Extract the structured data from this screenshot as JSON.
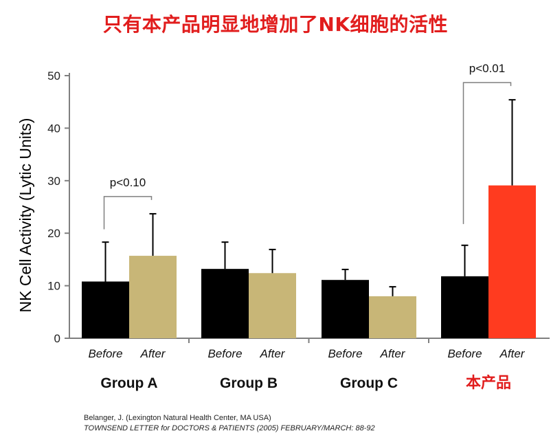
{
  "title": "只有本产品明显地增加了NK细胞的活性",
  "chart_data": {
    "type": "bar",
    "ylabel": "NK Cell Activity (Lytic Units)",
    "ylim": [
      0,
      50
    ],
    "yticks": [
      0,
      10,
      20,
      30,
      40,
      50
    ],
    "groups": [
      {
        "name": "Group A",
        "bars": [
          {
            "label": "Before",
            "value": 10.8,
            "error": 7.5,
            "color": "#000000"
          },
          {
            "label": "After",
            "value": 15.7,
            "error": 8.0,
            "color": "#c8b677"
          }
        ],
        "significance": "p<0.10"
      },
      {
        "name": "Group B",
        "bars": [
          {
            "label": "Before",
            "value": 13.2,
            "error": 5.1,
            "color": "#000000"
          },
          {
            "label": "After",
            "value": 12.4,
            "error": 4.5,
            "color": "#c8b677"
          }
        ],
        "significance": ""
      },
      {
        "name": "Group C",
        "bars": [
          {
            "label": "Before",
            "value": 11.1,
            "error": 2.0,
            "color": "#000000"
          },
          {
            "label": "After",
            "value": 8.0,
            "error": 1.8,
            "color": "#c8b677"
          }
        ],
        "significance": ""
      },
      {
        "name": "本产品",
        "bars": [
          {
            "label": "Before",
            "value": 11.8,
            "error": 5.9,
            "color": "#000000"
          },
          {
            "label": "After",
            "value": 29.1,
            "error": 16.3,
            "color": "#ff3b1f"
          }
        ],
        "significance": "p<0.01",
        "highlight_color": "#e11d1d"
      }
    ]
  },
  "footer": {
    "line1": "Belanger, J. (Lexington Natural Health Center, MA USA)",
    "line2": "TOWNSEND LETTER for DOCTORS & PATIENTS (2005) FEBRUARY/MARCH: 88-92"
  }
}
